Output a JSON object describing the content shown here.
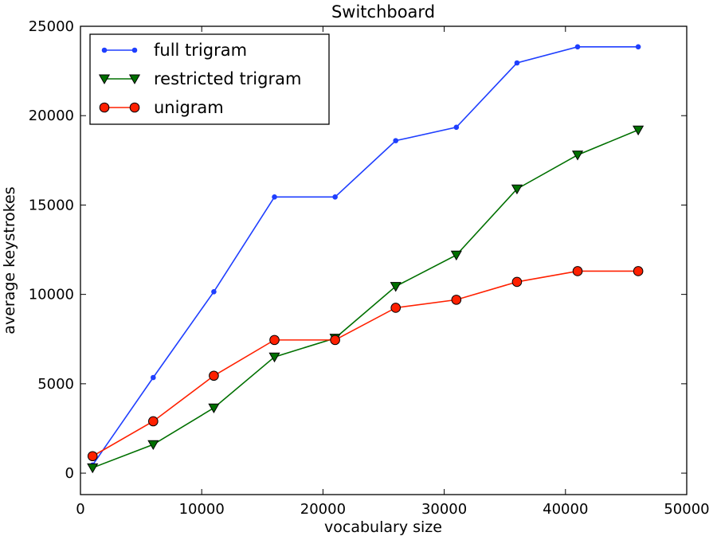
{
  "chart_data": {
    "type": "line",
    "title": "Switchboard",
    "xlabel": "vocabulary size",
    "ylabel": "average keystrokes",
    "xlim": [
      0,
      50000
    ],
    "ylim": [
      -1200,
      25000
    ],
    "x_ticks": [
      0,
      10000,
      20000,
      30000,
      40000,
      50000
    ],
    "y_ticks": [
      0,
      5000,
      10000,
      15000,
      20000,
      25000
    ],
    "x_tick_labels": [
      "0",
      "10000",
      "20000",
      "30000",
      "40000",
      "50000"
    ],
    "y_tick_labels": [
      "0",
      "5000",
      "10000",
      "15000",
      "20000",
      "25000"
    ],
    "grid": false,
    "legend_position": "upper-left",
    "x": [
      1000,
      6000,
      11000,
      16000,
      21000,
      26000,
      31000,
      36000,
      41000,
      46000
    ],
    "series": [
      {
        "name": "full trigram",
        "color": "#1f3fff",
        "marker": "point",
        "values": [
          450,
          5350,
          10150,
          15450,
          15450,
          18600,
          19350,
          22950,
          23850,
          23850
        ]
      },
      {
        "name": "restricted trigram",
        "color": "#007000",
        "marker": "triangle-down",
        "values": [
          300,
          1600,
          3650,
          6500,
          7550,
          10450,
          12200,
          15900,
          17800,
          19200
        ]
      },
      {
        "name": "unigram",
        "color": "#ff2000",
        "marker": "circle",
        "values": [
          950,
          2900,
          5450,
          7450,
          7450,
          9250,
          9700,
          10700,
          11300,
          11300
        ]
      }
    ]
  }
}
